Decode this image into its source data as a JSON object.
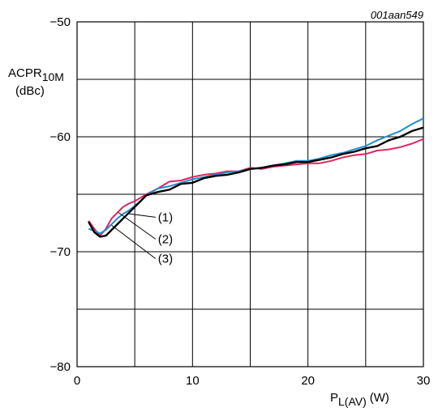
{
  "chart_data": {
    "type": "line",
    "figure_id": "001aan549",
    "ylabel": {
      "main": "ACPR",
      "sub": "10M",
      "unit": "(dBc)"
    },
    "xlabel": {
      "main": "P",
      "sub": "L(AV)",
      "unit": "(W)"
    },
    "xlim": [
      0,
      30
    ],
    "ylim": [
      -80,
      -50
    ],
    "xticks": [
      0,
      10,
      20,
      30
    ],
    "yticks": [
      -80,
      -70,
      -60,
      -50
    ],
    "x_grid": [
      0,
      5,
      10,
      15,
      20,
      25,
      30
    ],
    "y_grid": [
      -80,
      -75,
      -70,
      -65,
      -60,
      -55,
      -50
    ],
    "grid": true,
    "series": [
      {
        "name": "(1)",
        "color": "#000000",
        "x": [
          1,
          1.5,
          2,
          2.5,
          3,
          3.5,
          4,
          4.5,
          5,
          5.5,
          6,
          7,
          8,
          9,
          10,
          11,
          12,
          13,
          14,
          15,
          16,
          17,
          18,
          19,
          20,
          21,
          22,
          23,
          24,
          25,
          26,
          27,
          28,
          29,
          30
        ],
        "y": [
          -67.4,
          -68.3,
          -68.7,
          -68.6,
          -68.1,
          -67.6,
          -67.1,
          -66.6,
          -66.1,
          -65.6,
          -65.1,
          -64.8,
          -64.6,
          -64.1,
          -64.0,
          -63.6,
          -63.4,
          -63.3,
          -63.1,
          -62.8,
          -62.7,
          -62.5,
          -62.4,
          -62.2,
          -62.2,
          -62.0,
          -61.8,
          -61.5,
          -61.3,
          -61.0,
          -60.8,
          -60.3,
          -60.0,
          -59.5,
          -59.2
        ]
      },
      {
        "name": "(2)",
        "color": "#e0245e",
        "x": [
          1,
          1.5,
          2,
          2.5,
          3,
          3.5,
          4,
          4.5,
          5,
          5.5,
          6,
          7,
          8,
          9,
          10,
          11,
          12,
          13,
          14,
          15,
          16,
          17,
          18,
          19,
          20,
          21,
          22,
          23,
          24,
          25,
          26,
          27,
          28,
          29,
          30
        ],
        "y": [
          -67.3,
          -68.0,
          -68.6,
          -68.0,
          -67.1,
          -66.6,
          -66.1,
          -65.8,
          -65.6,
          -65.3,
          -65.0,
          -64.5,
          -63.9,
          -63.8,
          -63.5,
          -63.3,
          -63.2,
          -63.0,
          -63.0,
          -62.7,
          -62.8,
          -62.6,
          -62.5,
          -62.4,
          -62.3,
          -62.3,
          -62.1,
          -61.8,
          -61.6,
          -61.5,
          -61.2,
          -61.1,
          -60.9,
          -60.6,
          -60.2
        ]
      },
      {
        "name": "(3)",
        "color": "#1f8ed1",
        "x": [
          1,
          1.5,
          2,
          2.5,
          3,
          3.5,
          4,
          4.5,
          5,
          5.5,
          6,
          7,
          8,
          9,
          10,
          11,
          12,
          13,
          14,
          15,
          16,
          17,
          18,
          19,
          20,
          21,
          22,
          23,
          24,
          25,
          26,
          27,
          28,
          29,
          30
        ],
        "y": [
          -68.0,
          -68.2,
          -68.4,
          -68.1,
          -67.6,
          -67.1,
          -66.7,
          -66.4,
          -66.0,
          -65.6,
          -65.1,
          -64.5,
          -64.3,
          -64.0,
          -63.7,
          -63.5,
          -63.3,
          -63.1,
          -63.0,
          -62.8,
          -62.7,
          -62.5,
          -62.3,
          -62.1,
          -62.1,
          -61.9,
          -61.6,
          -61.4,
          -61.1,
          -60.8,
          -60.3,
          -59.9,
          -59.5,
          -58.9,
          -58.4
        ]
      }
    ],
    "annotations": [
      {
        "series": "(1)",
        "text": "(1)",
        "color": "#000000",
        "point": [
          4.5,
          -66.7
        ],
        "text_pos": [
          7.5,
          -67.0
        ]
      },
      {
        "series": "(2)",
        "text": "(2)",
        "color": "#e0245e",
        "point": [
          3.6,
          -66.6
        ],
        "text_pos": [
          7.5,
          -68.9
        ]
      },
      {
        "series": "(3)",
        "text": "(3)",
        "color": "#1f8ed1",
        "point": [
          3.0,
          -67.7
        ],
        "text_pos": [
          7.5,
          -70.6
        ]
      }
    ]
  }
}
